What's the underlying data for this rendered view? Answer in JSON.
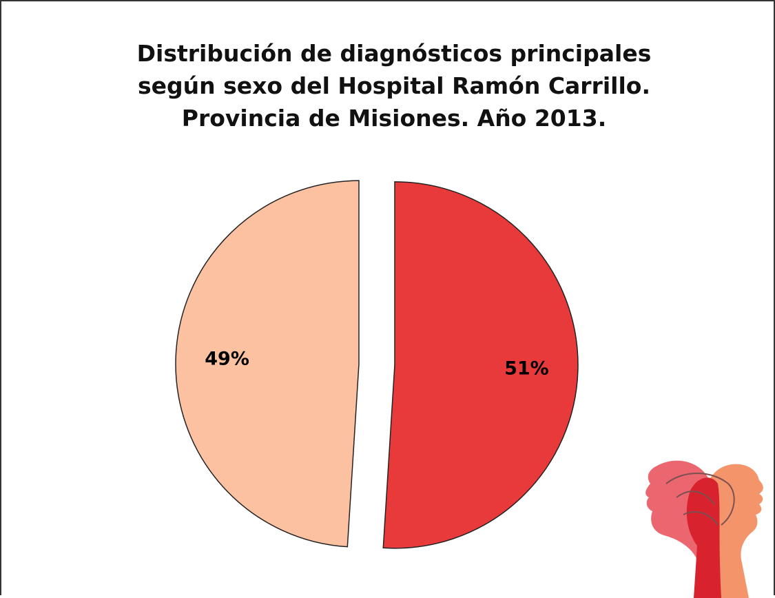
{
  "chart_data": {
    "type": "pie",
    "title": "Distribución de diagnósticos principales según sexo del Hospital Ramón Carrillo. Provincia de Misiones. Año 2013.",
    "values": [
      51,
      49
    ],
    "value_labels": [
      "51%",
      "49%"
    ],
    "colors": [
      "#e8393b",
      "#fcc1a0"
    ]
  }
}
